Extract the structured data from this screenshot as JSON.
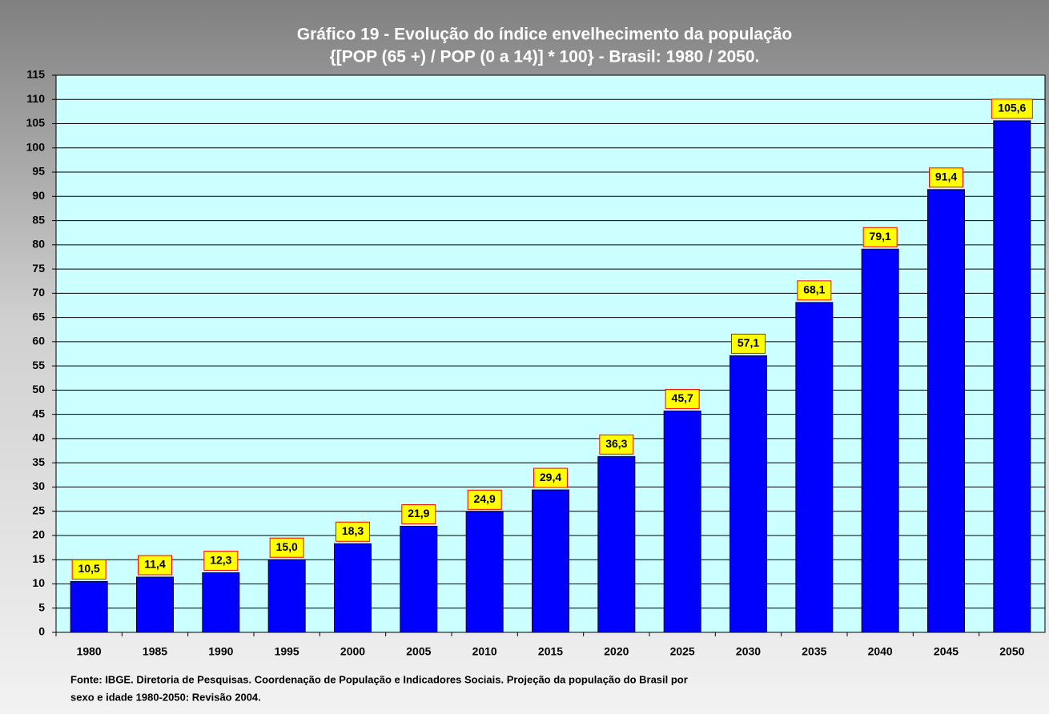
{
  "chart_data": {
    "type": "bar",
    "title": "Gráfico 19 - Evolução do índice envelhecimento da população",
    "subtitle": "{[POP (65 +) / POP (0 a 14)] * 100} - Brasil: 1980 / 2050.",
    "categories": [
      "1980",
      "1985",
      "1990",
      "1995",
      "2000",
      "2005",
      "2010",
      "2015",
      "2020",
      "2025",
      "2030",
      "2035",
      "2040",
      "2045",
      "2050"
    ],
    "values": [
      10.5,
      11.4,
      12.3,
      15.0,
      18.3,
      21.9,
      24.9,
      29.4,
      36.3,
      45.7,
      57.1,
      68.1,
      79.1,
      91.4,
      105.6
    ],
    "value_labels": [
      "10,5",
      "11,4",
      "12,3",
      "15,0",
      "18,3",
      "21,9",
      "24,9",
      "29,4",
      "36,3",
      "45,7",
      "57,1",
      "68,1",
      "79,1",
      "91,4",
      "105,6"
    ],
    "color": "#0000ff",
    "ylim": [
      0,
      115
    ],
    "yticks": [
      0,
      5,
      10,
      15,
      20,
      25,
      30,
      35,
      40,
      45,
      50,
      55,
      60,
      65,
      70,
      75,
      80,
      85,
      90,
      95,
      100,
      105,
      110,
      115
    ],
    "grid": true,
    "source_lines": [
      "Fonte: IBGE. Diretoria de Pesquisas. Coordenação de População e Indicadores Sociais. Projeção da população do Brasil por",
      "sexo e idade 1980-2050: Revisão 2004."
    ]
  }
}
